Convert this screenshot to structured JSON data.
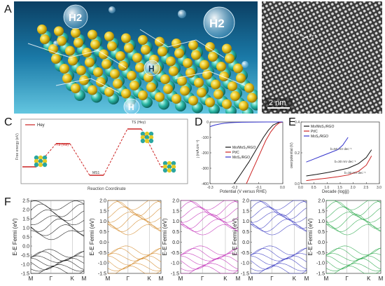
{
  "panels": {
    "A": {
      "label": "A",
      "bubble_labels": [
        "H2",
        "H2",
        "H",
        "H"
      ]
    },
    "B": {
      "label": "B",
      "scale_bar": "2 nm"
    },
    "C": {
      "label": "C",
      "legend": "Hey",
      "ylabel": "Free energy (eV)",
      "xlabel": "Reaction Coordinate",
      "annotations": [
        "TS (Vol)",
        "TS (Hey)",
        "MS1"
      ]
    },
    "D": {
      "label": "D",
      "xlabel": "Potential (V versus RHE)",
      "ylabel": "j (mA cm⁻²)",
      "xticks": [
        "-0.3",
        "-0.2",
        "-0.1",
        "0.0"
      ],
      "yticks": [
        "0",
        "-100",
        "-200",
        "-300",
        "-400"
      ],
      "legend": [
        "Mo/MoS₂/RGO",
        "Pt/C",
        "MoS₂/RGO"
      ]
    },
    "E": {
      "label": "E",
      "xlabel": "Decade (log|j|)",
      "ylabel": "overpotential (V)",
      "xticks": [
        "0.0",
        "0.5",
        "1.0",
        "1.5",
        "2.0",
        "2.5",
        "3.0"
      ],
      "yticks": [
        "0.0",
        "0.2",
        "0.4"
      ],
      "legend": [
        "Mo/MoS₂/RGO",
        "Pt/C",
        "MoS₂/RGO"
      ],
      "annotations": [
        "b=50 mV dec⁻¹",
        "b=30 mV dec⁻¹",
        "b=30 mV dec⁻¹"
      ]
    },
    "F": {
      "label": "F",
      "ylabel": "E-E Fermi (eV)",
      "kpoints": [
        "M",
        "Γ",
        "K",
        "M"
      ],
      "yticks_first": [
        "2.5",
        "2.0",
        "1.5",
        "1.0",
        "0.5",
        "0.0",
        "-0.5",
        "-1.0",
        "-1.5"
      ],
      "yticks_other": [
        "2.0",
        "1.5",
        "1.0",
        "0.5",
        "0.0",
        "-0.5",
        "-1.0",
        "-1.5"
      ]
    }
  },
  "chart_data": [
    {
      "type": "line",
      "panel": "D",
      "xlabel": "Potential (V versus RHE)",
      "ylabel": "j (mA cm⁻²)",
      "xlim": [
        -0.3,
        0.0
      ],
      "ylim": [
        -400,
        0
      ],
      "series": [
        {
          "name": "Mo/MoS₂/RGO",
          "color": "#111111",
          "x": [
            -0.2,
            -0.17,
            -0.14,
            -0.11,
            -0.08,
            -0.06,
            -0.04,
            -0.02,
            0.0
          ],
          "y": [
            -400,
            -330,
            -260,
            -180,
            -100,
            -55,
            -20,
            -5,
            0
          ]
        },
        {
          "name": "Pt/C",
          "color": "#cc2222",
          "x": [
            -0.15,
            -0.13,
            -0.11,
            -0.09,
            -0.07,
            -0.05,
            -0.03,
            -0.015,
            0.0
          ],
          "y": [
            -400,
            -330,
            -260,
            -190,
            -120,
            -65,
            -25,
            -6,
            0
          ]
        },
        {
          "name": "MoS₂/RGO",
          "color": "#3333cc",
          "x": [
            -0.3,
            -0.28,
            -0.26,
            -0.24,
            -0.22,
            -0.2,
            -0.17,
            -0.14,
            -0.1,
            -0.05,
            0.0
          ],
          "y": [
            -30,
            -20,
            -13,
            -8,
            -5,
            -3,
            -2,
            -1,
            -0.5,
            0,
            0
          ]
        }
      ]
    },
    {
      "type": "line",
      "panel": "E",
      "xlabel": "Decade (log|j|)",
      "ylabel": "overpotential (V)",
      "xlim": [
        0.0,
        3.0
      ],
      "ylim": [
        0.0,
        0.4
      ],
      "series": [
        {
          "name": "Mo/MoS₂/RGO",
          "color": "#111111",
          "x": [
            0.2,
            0.6,
            1.0,
            1.4,
            1.8,
            2.2,
            2.5,
            2.7
          ],
          "y": [
            0.05,
            0.06,
            0.072,
            0.085,
            0.1,
            0.13,
            0.17,
            0.22
          ]
        },
        {
          "name": "Pt/C",
          "color": "#cc2222",
          "x": [
            0.2,
            0.6,
            1.0,
            1.4,
            1.8,
            2.2,
            2.5,
            2.7
          ],
          "y": [
            0.02,
            0.028,
            0.036,
            0.045,
            0.056,
            0.08,
            0.12,
            0.18
          ]
        },
        {
          "name": "MoS₂/RGO",
          "color": "#3333cc",
          "x": [
            0.2,
            0.5,
            0.8,
            1.1,
            1.4,
            1.6,
            1.8
          ],
          "y": [
            0.14,
            0.16,
            0.18,
            0.2,
            0.22,
            0.25,
            0.3
          ]
        }
      ]
    },
    {
      "type": "line",
      "panel": "C",
      "ylabel": "Free energy (eV)",
      "xlabel": "Reaction Coordinate",
      "series": [
        {
          "name": "Hey",
          "color": "#cc2222",
          "x": [
            0,
            1,
            2,
            3,
            4
          ],
          "y": [
            0.0,
            0.55,
            -0.2,
            0.9,
            0.0
          ]
        }
      ]
    }
  ]
}
